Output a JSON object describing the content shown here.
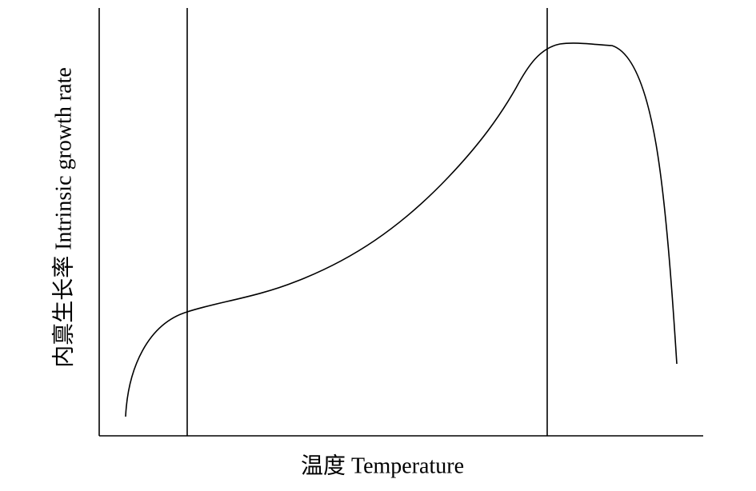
{
  "x_axis_label": "温度 Temperature",
  "y_axis_label": "内禀生长率 Intrinsic growth rate"
}
